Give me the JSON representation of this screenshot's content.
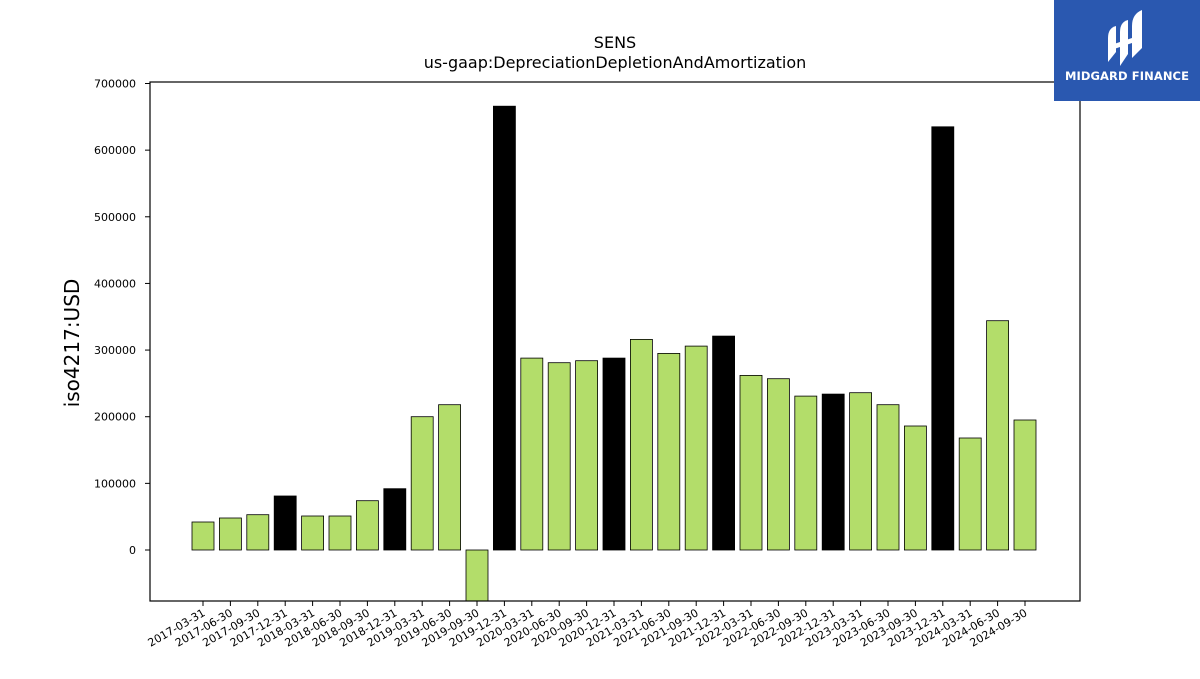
{
  "chart_data": {
    "type": "bar",
    "title": "SENS",
    "subtitle": "us-gaap:DepreciationDepletionAndAmortization",
    "xlabel": "",
    "ylabel": "iso4217:USD",
    "ylim": [
      -75000,
      700000
    ],
    "yticks": [
      0,
      100000,
      200000,
      300000,
      400000,
      500000,
      600000,
      700000
    ],
    "grid": false,
    "colors": {
      "quarterly": "#b3dd6a",
      "annual": "#000000",
      "edge": "#000000"
    },
    "categories": [
      "2017-03-31",
      "2017-06-30",
      "2017-09-30",
      "2017-12-31",
      "2018-03-31",
      "2018-06-30",
      "2018-09-30",
      "2018-12-31",
      "2019-03-31",
      "2019-06-30",
      "2019-09-30",
      "2019-12-31",
      "2020-03-31",
      "2020-06-30",
      "2020-09-30",
      "2020-12-31",
      "2021-03-31",
      "2021-06-30",
      "2021-09-30",
      "2021-12-31",
      "2022-03-31",
      "2022-06-30",
      "2022-09-30",
      "2022-12-31",
      "2023-03-31",
      "2023-06-30",
      "2023-09-30",
      "2023-12-31",
      "2024-03-31",
      "2024-06-30",
      "2024-09-30"
    ],
    "values": [
      42000,
      48000,
      53000,
      81000,
      51000,
      51000,
      74000,
      92000,
      200000,
      218000,
      -78000,
      666000,
      288000,
      281000,
      284000,
      288000,
      316000,
      295000,
      306000,
      321000,
      262000,
      257000,
      231000,
      234000,
      236000,
      218000,
      186000,
      635000,
      168000,
      344000,
      195000
    ],
    "annual": [
      false,
      false,
      false,
      true,
      false,
      false,
      false,
      true,
      false,
      false,
      false,
      true,
      false,
      false,
      false,
      true,
      false,
      false,
      false,
      true,
      false,
      false,
      false,
      true,
      false,
      false,
      false,
      true,
      false,
      false,
      false
    ]
  },
  "logo": {
    "text": "MIDGARD FINANCE",
    "color": "#2a58b0"
  }
}
